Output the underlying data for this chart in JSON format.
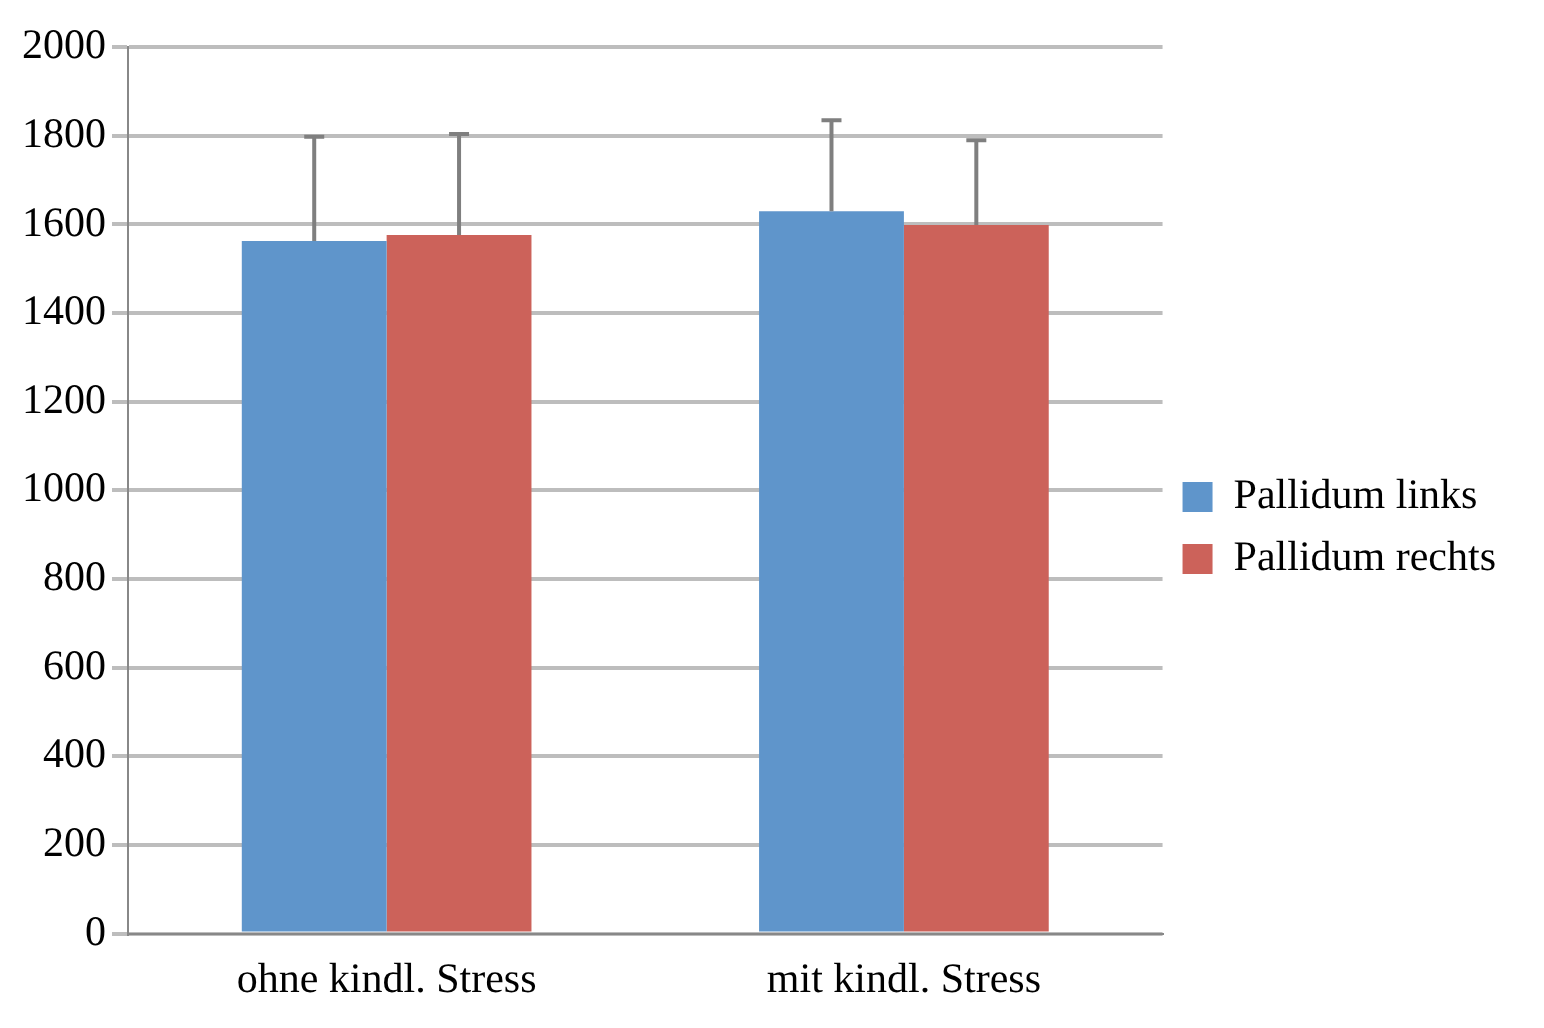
{
  "chart_data": {
    "type": "bar",
    "categories": [
      "ohne kindl. Stress",
      "mit kindl. Stress"
    ],
    "series": [
      {
        "name": "Pallidum links",
        "color": "#5f95cb",
        "values": [
          1563,
          1630
        ],
        "errors": [
          [
            1563,
            1798
          ],
          [
            1630,
            1835
          ]
        ]
      },
      {
        "name": "Pallidum rechts",
        "color": "#cc625a",
        "values": [
          1576,
          1599
        ],
        "errors": [
          [
            1576,
            1804
          ],
          [
            1599,
            1790
          ]
        ]
      }
    ],
    "ylim": [
      0,
      2000
    ],
    "yticks": [
      0,
      200,
      400,
      600,
      800,
      1000,
      1200,
      1400,
      1600,
      1800,
      2000
    ],
    "grid": "y",
    "legend": "right"
  }
}
